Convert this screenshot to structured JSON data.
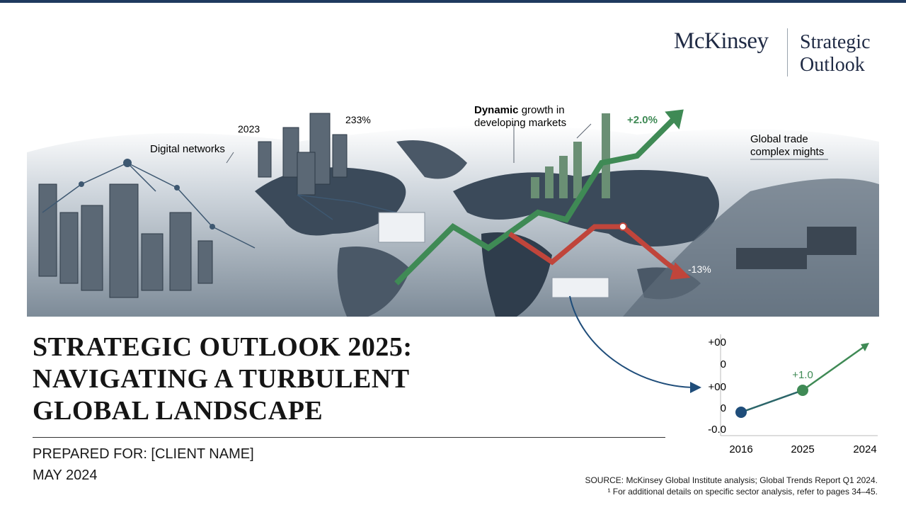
{
  "header": {
    "brand": "McKinsey",
    "product_line1": "Strategic",
    "product_line2": "Outlook"
  },
  "banner": {
    "digital": "Digital networks",
    "year": "2023",
    "percent": "233%",
    "dynamic_bold": "Dynamic",
    "dynamic_rest": "growth in",
    "dynamic_line2": "developing markets",
    "up": "+2.0%",
    "trade_line1": "Global trade",
    "trade_line2": "complex mights",
    "down": "-13%"
  },
  "title": [
    "STRATEGIC OUTLOOK 2025:",
    "NAVIGATING A TURBULENT",
    "GLOBAL LANDSCAPE"
  ],
  "prepared_for": "PREPARED FOR: [CLIENT NAME]",
  "date": "MAY 2024",
  "inset": {
    "y_labels": [
      "+00",
      "0",
      "+00",
      "0",
      "-0.0"
    ],
    "x_labels": [
      "2016",
      "2025",
      "2024"
    ],
    "point_label": "+1.0"
  },
  "source": "SOURCE: McKinsey Global Institute analysis; Global Trends Report Q1 2024.",
  "footnote": "¹ For additional details on specific sector analysis, refer to pages 34–45."
}
